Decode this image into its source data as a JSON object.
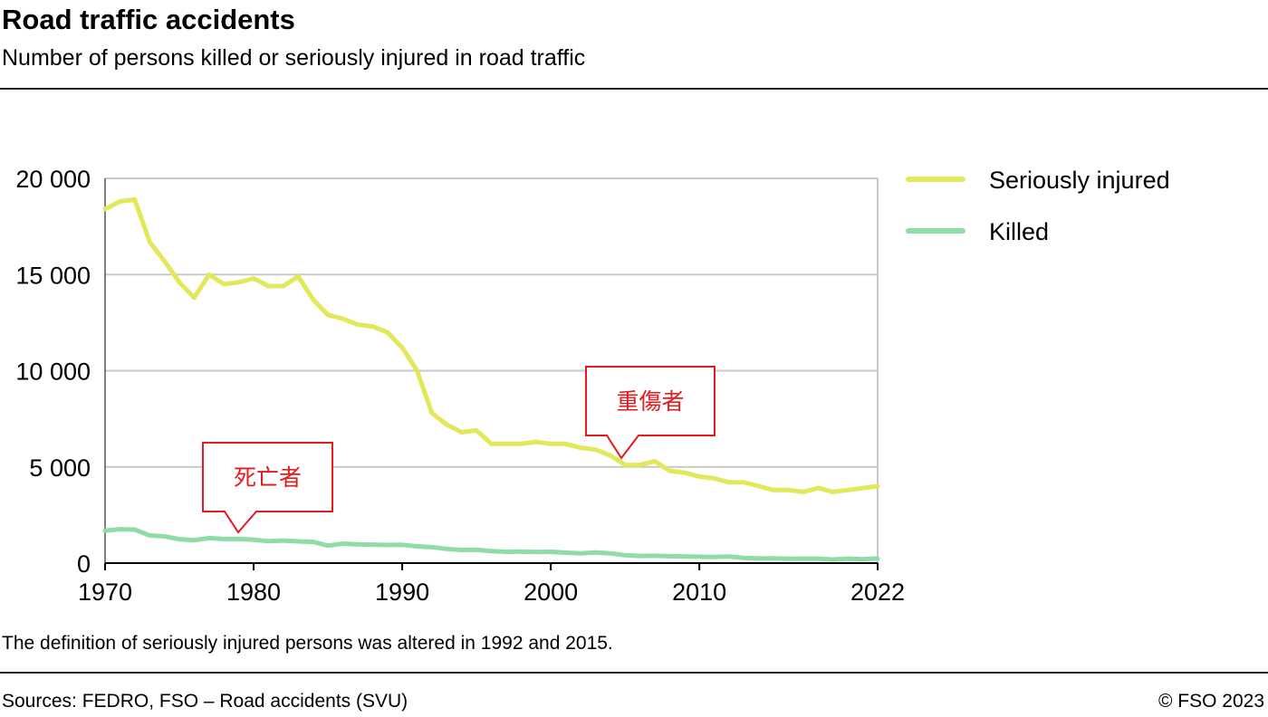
{
  "header": {
    "title": "Road traffic accidents",
    "subtitle": "Number of persons killed or seriously injured in road traffic"
  },
  "footer": {
    "note": "The definition of seriously injured persons was altered in 1992 and 2015.",
    "source": "Sources: FEDRO, FSO – Road accidents (SVU)",
    "copyright": "© FSO 2023"
  },
  "annotations": {
    "injured_callout": "重傷者",
    "killed_callout": "死亡者"
  },
  "colors": {
    "seriously_injured": "#e2e85a",
    "killed": "#8fdca6",
    "callout": "#e41a1c",
    "grid": "#c8c8c8"
  },
  "chart_data": {
    "type": "line",
    "title": "Road traffic accidents",
    "subtitle": "Number of persons killed or seriously injured in road traffic",
    "xlim": [
      1970,
      2022
    ],
    "ylim": [
      0,
      20000
    ],
    "x_ticks": [
      "1970",
      "1980",
      "1990",
      "2000",
      "2010",
      "2022"
    ],
    "y_ticks": [
      "0",
      "5 000",
      "10 000",
      "15 000",
      "20 000"
    ],
    "grid": true,
    "legend_position": "right",
    "x": [
      1970,
      1971,
      1972,
      1973,
      1974,
      1975,
      1976,
      1977,
      1978,
      1979,
      1980,
      1981,
      1982,
      1983,
      1984,
      1985,
      1986,
      1987,
      1988,
      1989,
      1990,
      1991,
      1992,
      1993,
      1994,
      1995,
      1996,
      1997,
      1998,
      1999,
      2000,
      2001,
      2002,
      2003,
      2004,
      2005,
      2006,
      2007,
      2008,
      2009,
      2010,
      2011,
      2012,
      2013,
      2014,
      2015,
      2016,
      2017,
      2018,
      2019,
      2020,
      2021,
      2022
    ],
    "series": [
      {
        "name": "Seriously injured",
        "values": [
          18400,
          18800,
          18900,
          16700,
          15700,
          14600,
          13800,
          15000,
          14500,
          14600,
          14800,
          14400,
          14400,
          14900,
          13700,
          12900,
          12700,
          12400,
          12300,
          12000,
          11200,
          10000,
          7800,
          7200,
          6800,
          6900,
          6200,
          6200,
          6200,
          6300,
          6200,
          6200,
          6000,
          5900,
          5600,
          5100,
          5100,
          5300,
          4800,
          4700,
          4500,
          4400,
          4200,
          4200,
          4000,
          3800,
          3800,
          3700,
          3900,
          3700,
          3800,
          3900,
          4000
        ]
      },
      {
        "name": "Killed",
        "values": [
          1690,
          1760,
          1740,
          1440,
          1390,
          1240,
          1190,
          1300,
          1250,
          1250,
          1220,
          1140,
          1170,
          1130,
          1100,
          910,
          1010,
          970,
          960,
          940,
          950,
          870,
          830,
          740,
          680,
          690,
          620,
          590,
          600,
          580,
          590,
          540,
          510,
          550,
          510,
          410,
          370,
          380,
          360,
          350,
          330,
          320,
          340,
          270,
          240,
          250,
          220,
          230,
          230,
          190,
          230,
          200,
          240
        ]
      }
    ]
  }
}
